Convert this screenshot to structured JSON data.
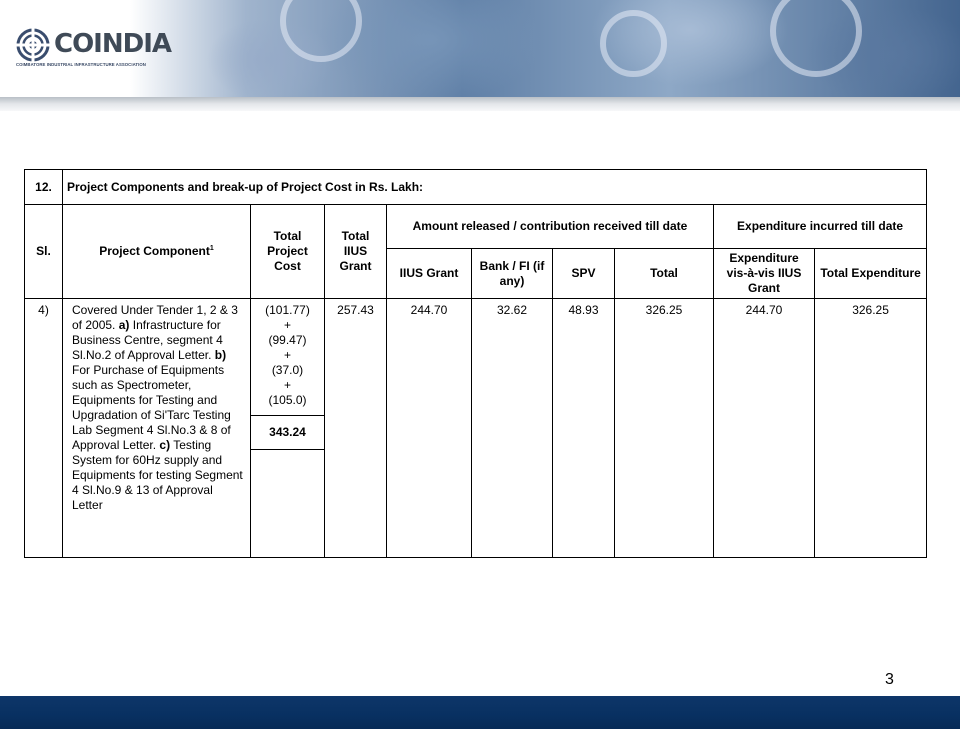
{
  "header": {
    "logo_text": "COINDIA",
    "logo_tagline": "COIMBATORE INDUSTRIAL INFRASTRUCTURE ASSOCIATION"
  },
  "table": {
    "item_no": "12.",
    "title": "Project Components and break-up of Project Cost in Rs. Lakh:",
    "headers": {
      "sl": "Sl.",
      "component": "Project Component",
      "component_sup": "1",
      "total_project_cost": "Total Project Cost",
      "total_iius_grant": "Total IIUS Grant",
      "amount_released": "Amount released / contribution received till date",
      "expenditure": "Expenditure incurred till date",
      "iius_grant": "IIUS Grant",
      "bank_fi": "Bank / FI (if any)",
      "spv": "SPV",
      "total": "Total",
      "exp_vis_a_vis": "Expenditure vis-à-vis IIUS Grant",
      "total_expenditure": "Total Expenditure"
    },
    "row": {
      "sl": "4)",
      "component_intro": "Covered Under Tender 1, 2 & 3 of 2005.",
      "part_a_label": "a)",
      "part_a": "Infrastructure for Business Centre, segment 4 Sl.No.2 of Approval Letter.",
      "part_b_label": "b)",
      "part_b": "For Purchase of Equipments such as Spectrometer, Equipments for Testing and Upgradation of Si'Tarc Testing Lab Segment 4 Sl.No.3 & 8 of Approval Letter.",
      "part_c_label": "c)",
      "part_c": "Testing System for 60Hz supply and Equipments for testing Segment 4 Sl.No.9 & 13 of Approval Letter",
      "cost_1": "(101.77)",
      "plus_1": "+",
      "cost_2": "(99.47)",
      "plus_2": "+",
      "cost_3": "(37.0)",
      "plus_3": "+",
      "cost_4": "(105.0)",
      "cost_total": "343.24",
      "total_iius_grant": "257.43",
      "iius_grant": "244.70",
      "bank_fi": "32.62",
      "spv": "48.93",
      "total": "326.25",
      "exp_vis_a_vis": "244.70",
      "total_expenditure": "326.25"
    }
  },
  "page_number": "3",
  "colors": {
    "footer": "#0a3263",
    "logo_text": "#3f4a57"
  }
}
